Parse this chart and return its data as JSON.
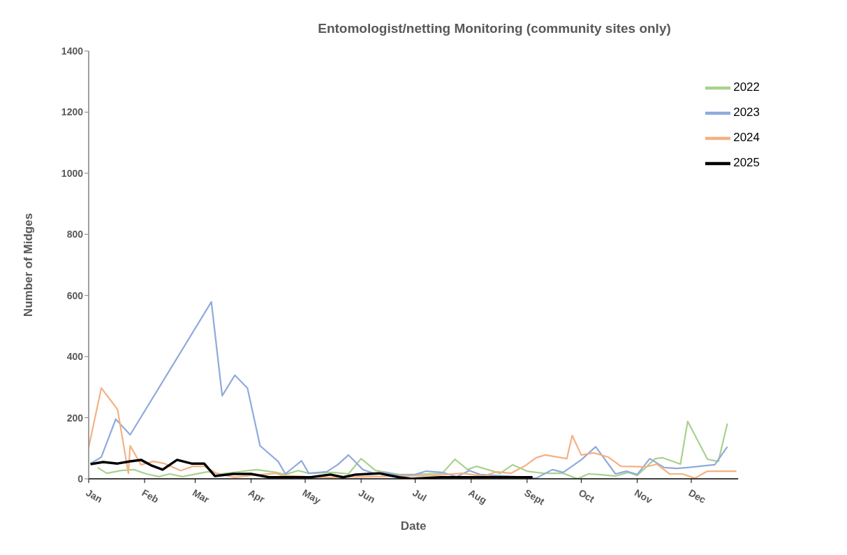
{
  "chart_data": {
    "type": "line",
    "title": "Entomologist/netting Monitoring (community sites only)",
    "xlabel": "Date",
    "ylabel": "Number of Midges",
    "xlim": [
      "--01-01",
      "--12-27"
    ],
    "xticks": [
      {
        "value": "--01-01",
        "label": "Jan"
      },
      {
        "value": "--02-01",
        "label": "Feb"
      },
      {
        "value": "--03-01",
        "label": "Mar"
      },
      {
        "value": "--04-01",
        "label": "Apr"
      },
      {
        "value": "--05-01",
        "label": "May"
      },
      {
        "value": "--06-01",
        "label": "Jun"
      },
      {
        "value": "--07-01",
        "label": "Jul"
      },
      {
        "value": "--08-01",
        "label": "Aug"
      },
      {
        "value": "--09-01",
        "label": "Sept"
      },
      {
        "value": "--10-01",
        "label": "Oct"
      },
      {
        "value": "--11-01",
        "label": "Nov"
      },
      {
        "value": "--12-01",
        "label": "Dec"
      }
    ],
    "ylim": [
      0,
      1400
    ],
    "yticks": [
      0,
      200,
      400,
      600,
      800,
      1000,
      1200,
      1400
    ],
    "grid": false,
    "legend": "top right",
    "marker": "none",
    "line_style": "solid",
    "series": [
      {
        "name": "2022",
        "color": "#a9d18e",
        "x": [
          "--01-06",
          "--01-11",
          "--01-19",
          "--01-26",
          "--02-02",
          "--02-09",
          "--02-15",
          "--02-22",
          "--03-08",
          "--03-15",
          "--04-04",
          "--04-15",
          "--04-20",
          "--04-27",
          "--05-03",
          "--05-17",
          "--05-25",
          "--06-01",
          "--06-09",
          "--06-22",
          "--07-01",
          "--07-16",
          "--07-23",
          "--07-30",
          "--08-04",
          "--08-17",
          "--08-24",
          "--09-01",
          "--09-10",
          "--09-21",
          "--09-29",
          "--10-05",
          "--10-11",
          "--10-20",
          "--10-27",
          "--11-01",
          "--11-11",
          "--11-15",
          "--11-25",
          "--11-29",
          "--12-10",
          "--12-16",
          "--12-21"
        ],
        "values": [
          37,
          18,
          27,
          30,
          16,
          7,
          16,
          7,
          23,
          16,
          30,
          21,
          14,
          27,
          18,
          21,
          16,
          66,
          27,
          14,
          14,
          18,
          64,
          30,
          41,
          18,
          46,
          25,
          18,
          18,
          0,
          16,
          14,
          9,
          21,
          11,
          66,
          69,
          48,
          188,
          64,
          57,
          181
        ]
      },
      {
        "name": "2023",
        "color": "#8faadc",
        "x": [
          "--01-02",
          "--01-08",
          "--01-16",
          "--01-24",
          "--03-10",
          "--03-16",
          "--03-23",
          "--03-30",
          "--04-06",
          "--04-16",
          "--04-20",
          "--04-29",
          "--05-03",
          "--05-13",
          "--05-19",
          "--05-25",
          "--06-02",
          "--06-08",
          "--06-14",
          "--06-22",
          "--07-01",
          "--07-07",
          "--07-16",
          "--07-24",
          "--07-31",
          "--08-06",
          "--08-21",
          "--09-06",
          "--09-15",
          "--09-21",
          "--10-01",
          "--10-09",
          "--10-20",
          "--10-26",
          "--11-01",
          "--11-08",
          "--11-16",
          "--11-23",
          "--11-29",
          "--12-09",
          "--12-14",
          "--12-21"
        ],
        "values": [
          50,
          71,
          195,
          144,
          579,
          272,
          339,
          297,
          108,
          57,
          16,
          59,
          18,
          23,
          46,
          78,
          30,
          18,
          21,
          11,
          14,
          25,
          21,
          7,
          27,
          14,
          9,
          2,
          30,
          21,
          62,
          105,
          16,
          25,
          14,
          66,
          37,
          34,
          37,
          43,
          46,
          105
        ]
      },
      {
        "name": "2024",
        "color": "#f4b183",
        "x": [
          "--01-01",
          "--01-08",
          "--01-17",
          "--01-23",
          "--01-24",
          "--01-30",
          "--02-06",
          "--02-12",
          "--02-21",
          "--02-28",
          "--03-06",
          "--03-13",
          "--03-23",
          "--04-01",
          "--04-15",
          "--04-18",
          "--05-01",
          "--05-13",
          "--06-08",
          "--06-23",
          "--07-11",
          "--07-27",
          "--08-08",
          "--08-15",
          "--08-23",
          "--08-31",
          "--09-06",
          "--09-11",
          "--09-23",
          "--09-26",
          "--10-01",
          "--10-08",
          "--10-16",
          "--10-23",
          "--11-06",
          "--11-12",
          "--11-19",
          "--11-26",
          "--12-03",
          "--12-10",
          "--12-26"
        ],
        "values": [
          103,
          297,
          227,
          18,
          108,
          46,
          57,
          50,
          27,
          41,
          41,
          18,
          5,
          11,
          18,
          11,
          7,
          5,
          7,
          9,
          11,
          18,
          9,
          23,
          18,
          43,
          69,
          78,
          66,
          142,
          78,
          85,
          71,
          41,
          39,
          48,
          16,
          16,
          2,
          25,
          25
        ]
      },
      {
        "name": "2025",
        "color": "#000000",
        "x": [
          "--01-02",
          "--01-09",
          "--01-17",
          "--01-24",
          "--01-30",
          "--02-05",
          "--02-11",
          "--02-19",
          "--02-27",
          "--03-06",
          "--03-12",
          "--03-22",
          "--04-01",
          "--04-11",
          "--04-21",
          "--05-04",
          "--05-15",
          "--05-22",
          "--05-29",
          "--06-11",
          "--06-22",
          "--06-29",
          "--07-15",
          "--08-04",
          "--08-19",
          "--09-04"
        ],
        "values": [
          48,
          55,
          50,
          57,
          62,
          43,
          30,
          62,
          50,
          50,
          9,
          16,
          16,
          5,
          5,
          5,
          14,
          5,
          14,
          18,
          5,
          0,
          5,
          5,
          5,
          5
        ]
      }
    ]
  }
}
